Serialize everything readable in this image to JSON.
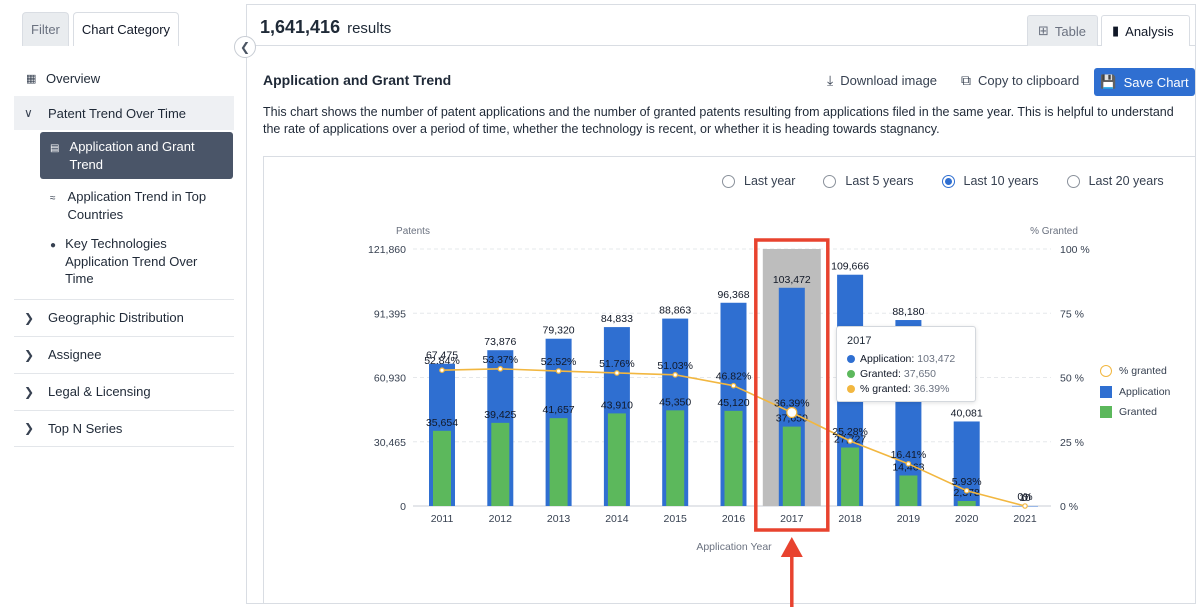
{
  "sidebar": {
    "tabs": [
      {
        "label": "Filter"
      },
      {
        "label": "Chart Category"
      }
    ],
    "overview": "Overview",
    "open_group": "Patent Trend Over Time",
    "sub_items": [
      {
        "label": "Application and Grant Trend"
      },
      {
        "label": "Application Trend in Top Countries"
      },
      {
        "label": "Key Technologies Application Trend Over Time"
      }
    ],
    "groups": [
      {
        "label": "Geographic Distribution"
      },
      {
        "label": "Assignee"
      },
      {
        "label": "Legal & Licensing"
      },
      {
        "label": "Top N Series"
      }
    ]
  },
  "topbar": {
    "count": "1,641,416",
    "count_label": "results",
    "view_tabs": [
      "Table",
      "Analysis"
    ]
  },
  "header": {
    "title": "Application and Grant Trend",
    "download": "Download image",
    "copy": "Copy to clipboard",
    "save": "Save Chart",
    "description": "This chart shows the number of patent applications and the number of granted patents resulting from applications filed in the same year. This is helpful to understand the rate of applications over a period of time, whether the technology is recent, or whether it is heading towards stagnancy."
  },
  "time_range": {
    "options": [
      "Last year",
      "Last 5 years",
      "Last 10 years",
      "Last 20 years"
    ],
    "selected": "Last 10 years"
  },
  "tooltip": {
    "year": "2017",
    "application_label": "Application:",
    "application_value": "103,472",
    "granted_label": "Granted:",
    "granted_value": "37,650",
    "pct_label": "% granted:",
    "pct_value": "36.39%"
  },
  "colors": {
    "application": "#2f6fd1",
    "granted": "#5cb85c",
    "pct_line": "#f2b740",
    "highlight": "#e8432f",
    "hover_band": "#bdbdbd"
  },
  "chart_data": {
    "type": "bar",
    "categories": [
      "2011",
      "2012",
      "2013",
      "2014",
      "2015",
      "2016",
      "2017",
      "2018",
      "2019",
      "2020",
      "2021"
    ],
    "series": [
      {
        "name": "Application",
        "values": [
          67475,
          73876,
          79320,
          84833,
          88863,
          96368,
          103472,
          109666,
          88180,
          40081,
          10
        ]
      },
      {
        "name": "Granted",
        "values": [
          35654,
          39425,
          41657,
          43910,
          45350,
          45120,
          37650,
          27727,
          14463,
          2378,
          0
        ]
      },
      {
        "name": "% granted",
        "values": [
          52.84,
          53.37,
          52.52,
          51.76,
          51.03,
          46.82,
          36.39,
          25.28,
          16.41,
          5.93,
          0
        ]
      }
    ],
    "bar_labels_application": [
      "67,475",
      "73,876",
      "79,320",
      "84,833",
      "88,863",
      "96,368",
      "103,472",
      "109,666",
      "88,180",
      "40,081",
      "10"
    ],
    "bar_labels_granted": [
      "35,654",
      "39,425",
      "41,657",
      "43,910",
      "45,350",
      "45,120",
      "37,650",
      "27,727",
      "14,463",
      "2,378",
      "0"
    ],
    "pct_labels": [
      "52.84%",
      "53.37%",
      "52.52%",
      "51.76%",
      "51.03%",
      "46.82%",
      "36.39%",
      "25.28%",
      "16.41%",
      "5.93%",
      "0%"
    ],
    "ylabel": "Patents",
    "y2label": "% Granted",
    "xlabel": "Application Year",
    "ylim": [
      0,
      121860
    ],
    "y_ticks": [
      "0",
      "30,465",
      "60,930",
      "91,395",
      "121,860"
    ],
    "y2lim": [
      0,
      100
    ],
    "y2_ticks": [
      "0 %",
      "25 %",
      "50 %",
      "75 %",
      "100 %"
    ],
    "highlighted": "2017",
    "grid": true,
    "legend_position": "right"
  }
}
